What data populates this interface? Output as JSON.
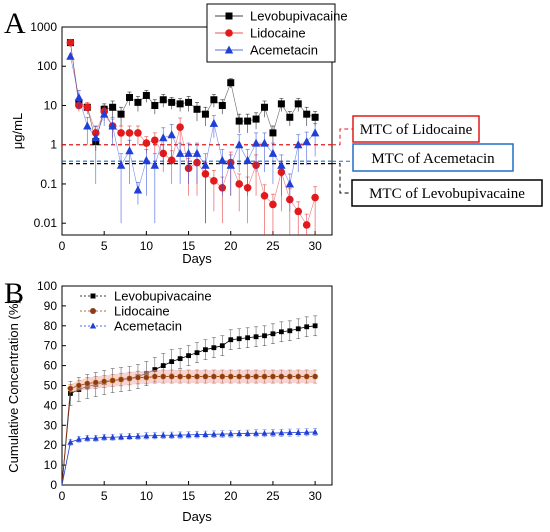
{
  "colors": {
    "levobupivacaine": "#000000",
    "lidocaine": "#e31a1c",
    "lidocaine_B_fill": "#8b3a1a",
    "lidocaine_B_band": "#f4b6b6",
    "acemetacin": "#1f3fd6",
    "mtc_lidocaine_box": "#e31a1c",
    "mtc_acemetacin_box": "#1f6fc6",
    "mtc_levo_box": "#000000"
  },
  "chart_data": [
    {
      "type": "scatter",
      "panel": "A",
      "xlabel": "Days",
      "ylabel": "μg/mL",
      "yscale": "log",
      "xlim": [
        0,
        32
      ],
      "ylim": [
        0.005,
        1000
      ],
      "xticks": [
        "0",
        "5",
        "10",
        "15",
        "20",
        "25",
        "30"
      ],
      "yticks": [
        "0.01",
        "0.1",
        "1",
        "10",
        "100",
        "1000"
      ],
      "legend_position": "top-right",
      "x": [
        1,
        2,
        3,
        4,
        5,
        6,
        7,
        8,
        9,
        10,
        11,
        12,
        13,
        14,
        15,
        16,
        17,
        18,
        19,
        20,
        21,
        22,
        23,
        24,
        25,
        26,
        27,
        28,
        29,
        30
      ],
      "series": [
        {
          "name": "Levobupivacaine",
          "marker": "square",
          "color": "#000000",
          "values": [
            400,
            12,
            9,
            1.2,
            8,
            9,
            6,
            16,
            12,
            18,
            10,
            14,
            12,
            11,
            12,
            8,
            6,
            14,
            10,
            38,
            4,
            4,
            4.5,
            9,
            2,
            11,
            5,
            11,
            6,
            5
          ],
          "err": [
            0,
            3,
            2,
            0.5,
            3,
            4,
            3,
            6,
            5,
            6,
            4,
            5,
            4,
            4,
            5,
            4,
            3,
            5,
            4,
            10,
            2,
            2,
            2,
            4,
            1,
            4,
            2,
            4,
            3,
            2
          ]
        },
        {
          "name": "Lidocaine",
          "marker": "circle",
          "color": "#e31a1c",
          "values": [
            400,
            10,
            9,
            2,
            7,
            3,
            2,
            2,
            2,
            1.1,
            1.3,
            0.6,
            0.4,
            2.8,
            0.25,
            0.35,
            0.18,
            0.12,
            0.08,
            0.35,
            0.1,
            0.08,
            0.3,
            0.05,
            0.03,
            0.2,
            0.04,
            0.02,
            0.009,
            0.045
          ],
          "err": [
            0,
            3,
            3,
            1,
            3,
            1.5,
            1,
            1,
            1,
            0.5,
            0.7,
            0.4,
            0.3,
            2,
            0.2,
            0.3,
            0.17,
            0.1,
            0.07,
            0.3,
            0.08,
            0.07,
            0.25,
            0.045,
            0.025,
            0.18,
            0.035,
            0.015,
            0.008,
            0.04
          ]
        },
        {
          "name": "Acemetacin",
          "marker": "triangle",
          "color": "#1f3fd6",
          "values": [
            180,
            16,
            3,
            1.5,
            6,
            3,
            0.3,
            0.7,
            0.07,
            0.4,
            0.3,
            1.5,
            1.8,
            0.6,
            0.6,
            0.6,
            0.3,
            3.5,
            0.4,
            0.3,
            1,
            0.4,
            1.1,
            1.1,
            0.6,
            0.3,
            0.1,
            1,
            1.2,
            2
          ],
          "err": [
            0,
            8,
            2,
            1.4,
            3,
            2,
            0.29,
            0.6,
            0.04,
            0.35,
            0.29,
            1.2,
            1.5,
            0.5,
            0.5,
            0.5,
            0.29,
            2,
            0.35,
            0.25,
            0.8,
            0.35,
            0.9,
            0.9,
            0.5,
            0.25,
            0.08,
            0.8,
            0.9,
            1.5
          ]
        }
      ],
      "reference_lines": [
        {
          "label": "MTC of Lidocaine",
          "value": 1.0,
          "color": "#e31a1c"
        },
        {
          "label": "MTC of Acemetacin",
          "value": 0.38,
          "color": "#1f6fc6"
        },
        {
          "label": "MTC of Levobupivacaine",
          "value": 0.33,
          "color": "#000000"
        }
      ]
    },
    {
      "type": "scatter",
      "panel": "B",
      "xlabel": "Days",
      "ylabel": "Cumulative Concentration (%)",
      "xlim": [
        0,
        32
      ],
      "ylim": [
        0,
        100
      ],
      "xticks": [
        "0",
        "5",
        "10",
        "15",
        "20",
        "25",
        "30"
      ],
      "yticks": [
        "0",
        "10",
        "20",
        "30",
        "40",
        "50",
        "60",
        "70",
        "80",
        "90",
        "100"
      ],
      "legend_position": "top-left",
      "x": [
        0,
        1,
        2,
        3,
        4,
        5,
        6,
        7,
        8,
        9,
        10,
        11,
        12,
        13,
        14,
        15,
        16,
        17,
        18,
        19,
        20,
        21,
        22,
        23,
        24,
        25,
        26,
        27,
        28,
        29,
        30
      ],
      "series": [
        {
          "name": "Levobupivacaine",
          "marker": "square",
          "color": "#000000",
          "values": [
            0,
            46,
            48,
            49.5,
            50.5,
            51.5,
            52.5,
            53,
            53.5,
            54.5,
            56,
            58,
            60,
            62,
            63.5,
            65,
            66.5,
            68,
            69,
            70,
            73,
            73.5,
            74,
            74.5,
            75,
            76,
            77,
            77.5,
            78.5,
            79.5,
            80
          ],
          "err": [
            0,
            6,
            6,
            6,
            6,
            6,
            6,
            6,
            6,
            6,
            6,
            6,
            6,
            6,
            5,
            5,
            5,
            5,
            5,
            5,
            5,
            5,
            5,
            5,
            5,
            5,
            5,
            5,
            5,
            5,
            5
          ]
        },
        {
          "name": "Lidocaine",
          "marker": "circle",
          "color": "#8b3a1a",
          "values": [
            0,
            48.5,
            50,
            51,
            51.5,
            52,
            52.5,
            53,
            53.5,
            54,
            54,
            54.5,
            54.5,
            54.5,
            54.5,
            54.5,
            54.5,
            54.5,
            54.5,
            54.5,
            54.5,
            54.5,
            54.5,
            54.5,
            54.5,
            54.5,
            54.5,
            54.5,
            54.5,
            54.5,
            54.5
          ],
          "err": [
            0,
            2,
            2.5,
            3,
            3,
            3,
            3,
            3.2,
            3.2,
            3.2,
            3.2,
            3.3,
            3.3,
            3.3,
            3.3,
            3.3,
            3.3,
            3.3,
            3.3,
            3.3,
            3.3,
            3.3,
            3.3,
            3.3,
            3.3,
            3.3,
            3.3,
            3.3,
            3.3,
            3.3,
            3.3
          ]
        },
        {
          "name": "Acemetacin",
          "marker": "triangle",
          "color": "#1f3fd6",
          "values": [
            0,
            21.5,
            23,
            23.5,
            23.5,
            24,
            24,
            24.2,
            24.4,
            24.5,
            24.7,
            24.8,
            25,
            25,
            25.1,
            25.2,
            25.3,
            25.4,
            25.5,
            25.6,
            25.7,
            25.8,
            25.9,
            26,
            26,
            26.1,
            26.2,
            26.3,
            26.4,
            26.5,
            26.6
          ],
          "err": [
            0,
            1.5,
            1.5,
            1.5,
            1.5,
            1.5,
            1.5,
            1.5,
            1.5,
            1.5,
            1.6,
            1.6,
            1.6,
            1.6,
            1.6,
            1.6,
            1.7,
            1.7,
            1.7,
            1.7,
            1.7,
            1.7,
            1.7,
            1.8,
            1.8,
            1.8,
            1.8,
            1.8,
            1.8,
            1.8,
            1.8
          ]
        }
      ]
    }
  ]
}
